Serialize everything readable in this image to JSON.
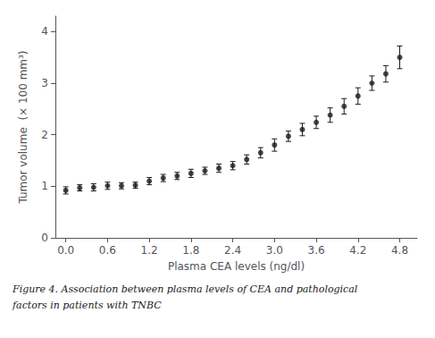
{
  "chart_data": {
    "type": "scatter",
    "x": [
      0.0,
      0.2,
      0.4,
      0.6,
      0.8,
      1.0,
      1.2,
      1.4,
      1.6,
      1.8,
      2.0,
      2.2,
      2.4,
      2.6,
      2.8,
      3.0,
      3.2,
      3.4,
      3.6,
      3.8,
      4.0,
      4.2,
      4.4,
      4.6,
      4.8
    ],
    "values": [
      0.92,
      0.97,
      0.98,
      1.01,
      1.01,
      1.02,
      1.1,
      1.16,
      1.2,
      1.25,
      1.3,
      1.35,
      1.4,
      1.52,
      1.65,
      1.8,
      1.97,
      2.1,
      2.24,
      2.38,
      2.55,
      2.75,
      3.0,
      3.18,
      3.5
    ],
    "yerr": [
      0.07,
      0.06,
      0.07,
      0.07,
      0.06,
      0.06,
      0.07,
      0.07,
      0.07,
      0.08,
      0.07,
      0.08,
      0.08,
      0.09,
      0.1,
      0.12,
      0.1,
      0.12,
      0.12,
      0.14,
      0.15,
      0.16,
      0.14,
      0.16,
      0.22
    ],
    "xlabel": "Plasma CEA levels (ng/dl)",
    "ylabel": "Tumor volume  (× 100 mm³)",
    "annotations": [
      "Figure 4. Association between plasma levels of CEA and pathological",
      "factors in patients with TNBC"
    ],
    "xlim": [
      -0.15,
      5.05
    ],
    "ylim": [
      0,
      4.3
    ],
    "xticks": [
      {
        "value": 0.0,
        "label": "0.0"
      },
      0.6,
      1.2,
      1.8,
      2.4,
      {
        "value": 3.0,
        "label": "3.0"
      },
      3.6,
      4.2,
      4.8
    ],
    "yticks": [
      0,
      1,
      2,
      3,
      4
    ],
    "color": "#1a1a1a",
    "marker": "circle",
    "grid": false
  }
}
